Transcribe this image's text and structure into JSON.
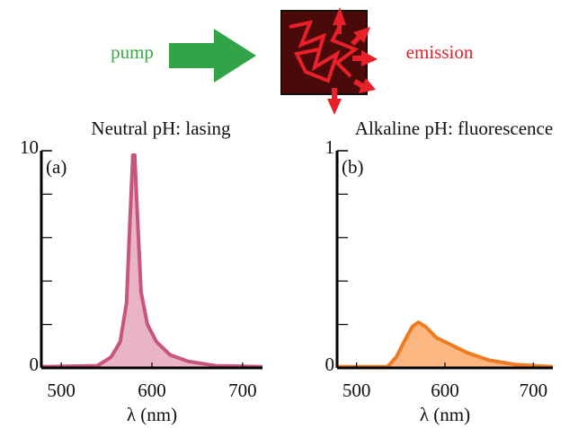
{
  "diagram": {
    "pump": "pump",
    "emission": "emission"
  },
  "chart_data": [
    {
      "type": "area",
      "title": "Neutral pH: lasing",
      "panel_label": "(a)",
      "xlabel": "λ (nm)",
      "x": [
        478,
        540,
        555,
        565,
        572,
        576,
        579,
        581,
        584,
        588,
        595,
        605,
        620,
        640,
        670,
        722
      ],
      "values": [
        0.05,
        0.1,
        0.5,
        1.2,
        3,
        7,
        9.8,
        9.8,
        7,
        3.5,
        2,
        1.2,
        0.6,
        0.3,
        0.1,
        0.05
      ],
      "color": "#c8557a",
      "fill_color": "#e9b4c3",
      "xlim": [
        478,
        722
      ],
      "xticks": [
        500,
        600,
        700
      ],
      "ylim": [
        0,
        10
      ],
      "yticks": [
        0,
        10
      ],
      "yminor_ticks": [
        2,
        4,
        6,
        8
      ]
    },
    {
      "type": "area",
      "title": "Alkaline pH: fluorescence",
      "panel_label": "(b)",
      "xlabel": "λ (nm)",
      "x": [
        478,
        535,
        545,
        555,
        563,
        570,
        578,
        590,
        605,
        625,
        650,
        680,
        722
      ],
      "values": [
        0.005,
        0.005,
        0.05,
        0.13,
        0.19,
        0.21,
        0.19,
        0.14,
        0.11,
        0.07,
        0.035,
        0.015,
        0.005
      ],
      "color": "#ee7b22",
      "fill_color": "#fbb77f",
      "xlim": [
        478,
        722
      ],
      "xticks": [
        500,
        600,
        700
      ],
      "ylim": [
        0,
        1
      ],
      "yticks": [
        0,
        1
      ],
      "yminor_ticks": [
        0.2,
        0.4,
        0.6,
        0.8
      ]
    }
  ]
}
